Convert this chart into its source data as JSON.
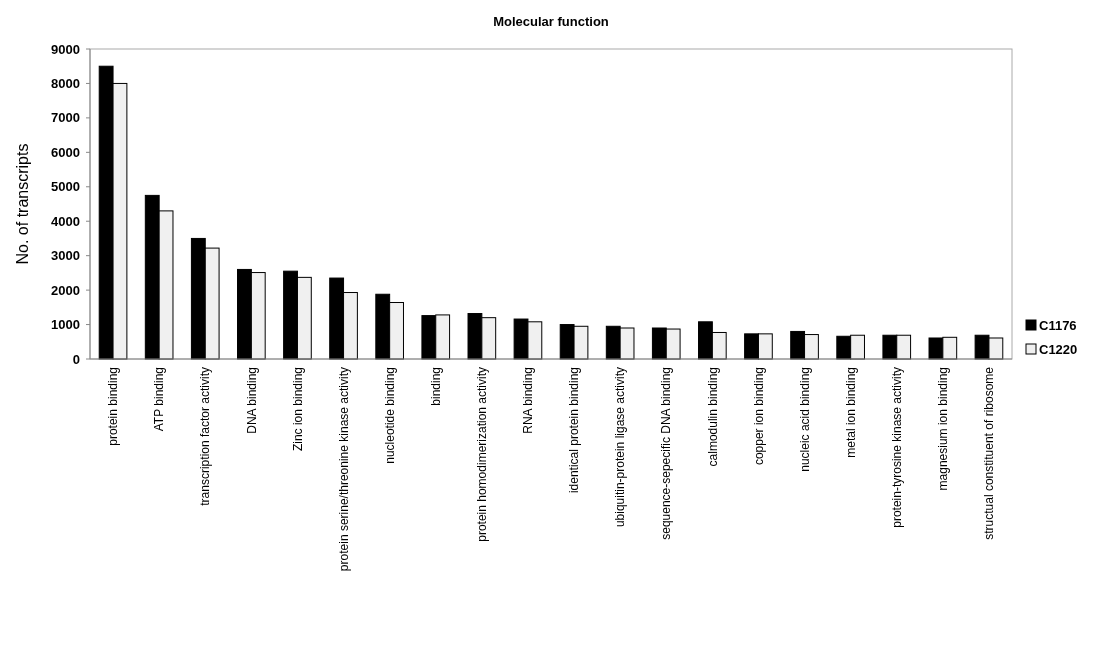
{
  "chart_data": {
    "type": "bar",
    "title": "Molecular function",
    "ylabel": "No. of transcripts",
    "categories": [
      "protein binding",
      "ATP binding",
      "transcription factor activity",
      "DNA binding",
      "Zinc ion binding",
      "protein serine/threonine kinase activity",
      "nucleotide binding",
      "binding",
      "protein homodimerization activity",
      "RNA binding",
      "identical protein binding",
      "ubiquitin-protein ligase activity",
      "sequence-sepecific DNA binding",
      "calmodulin binding",
      "copper ion binding",
      "nucleic acid binding",
      "metal ion binding",
      "protein-tyrosine kinase activity",
      "magnesium ion binding",
      "structual constituent of ribosome"
    ],
    "series": [
      {
        "name": "C1176",
        "color": "#000000",
        "values": [
          8500,
          4750,
          3500,
          2600,
          2550,
          2350,
          1880,
          1260,
          1320,
          1160,
          1000,
          950,
          900,
          1080,
          730,
          800,
          660,
          690,
          610,
          690
        ]
      },
      {
        "name": "C1220",
        "color": "#f0f0f0",
        "values": [
          8000,
          4300,
          3220,
          2510,
          2370,
          1930,
          1640,
          1280,
          1200,
          1080,
          950,
          900,
          870,
          770,
          730,
          710,
          690,
          690,
          630,
          610
        ]
      }
    ],
    "ylim": [
      0,
      9000
    ],
    "yticks": [
      0,
      1000,
      2000,
      3000,
      4000,
      5000,
      6000,
      7000,
      8000,
      9000
    ],
    "grid": false,
    "legend": "right"
  }
}
